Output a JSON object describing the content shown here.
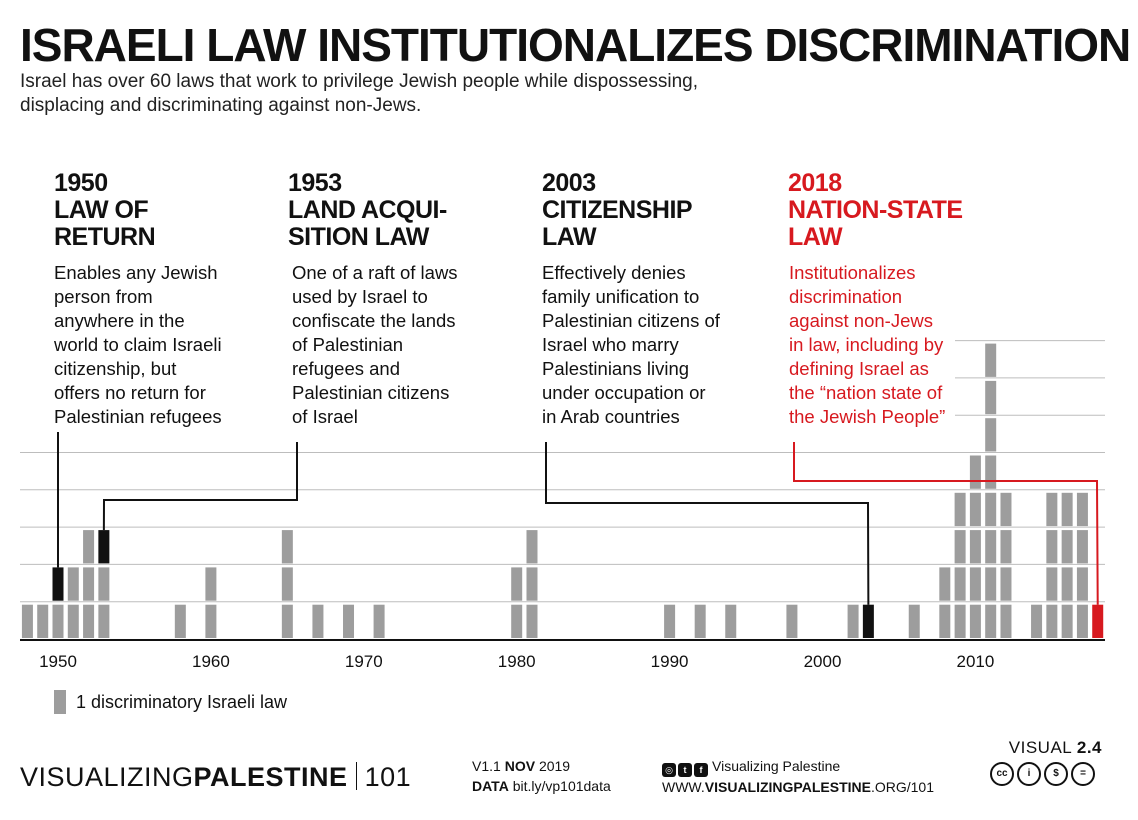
{
  "header": {
    "title": "ISRAELI LAW INSTITUTIONALIZES DISCRIMINATION",
    "subtitle": "Israel has over 60 laws that work to privilege Jewish people while dispossessing, displacing and discriminating against non-Jews."
  },
  "annotations": [
    {
      "year": "1950",
      "name": "LAW OF\nRETURN",
      "desc": "Enables any Jewish\nperson from\nanywhere in the\nworld to claim Israeli\ncitizenship, but\noffers no return for\nPalestinian refugees",
      "target_year": 1950,
      "color": "#111111"
    },
    {
      "year": "1953",
      "name": "LAND ACQUI-\nSITION LAW",
      "desc": "One of a raft of laws\nused by Israel to\nconfiscate the lands\nof Palestinian\nrefugees and\nPalestinian citizens\nof Israel",
      "target_year": 1953,
      "color": "#111111"
    },
    {
      "year": "2003",
      "name": "CITIZENSHIP\nLAW",
      "desc": "Effectively denies\nfamily unification to\nPalestinian citizens of\nIsrael who marry\nPalestinians living\nunder occupation or\nin Arab countries",
      "target_year": 2003,
      "color": "#111111"
    },
    {
      "year": "2018",
      "name": "NATION-STATE\nLAW",
      "desc": "Institutionalizes\ndiscrimination\nagainst non-Jews\nin law, including by\ndefining Israel as\nthe “nation state of\nthe Jewish People”",
      "target_year": 2018,
      "color": "#d7191f"
    }
  ],
  "chart_data": {
    "type": "bar",
    "x_ticks": [
      "1950",
      "1960",
      "1970",
      "1980",
      "1990",
      "2000",
      "2010"
    ],
    "xlim": [
      1948,
      2019
    ],
    "ylim": [
      0,
      8
    ],
    "unit_label": "1 discriminatory Israeli law",
    "years": [
      1948,
      1949,
      1950,
      1951,
      1952,
      1953,
      1958,
      1960,
      1965,
      1967,
      1969,
      1971,
      1980,
      1981,
      1990,
      1992,
      1994,
      1998,
      2002,
      2003,
      2006,
      2008,
      2009,
      2010,
      2011,
      2012,
      2014,
      2015,
      2016,
      2017,
      2018
    ],
    "counts": [
      1,
      1,
      2,
      2,
      3,
      3,
      1,
      2,
      3,
      1,
      1,
      1,
      2,
      3,
      1,
      1,
      1,
      1,
      1,
      1,
      1,
      2,
      4,
      5,
      8,
      4,
      1,
      4,
      4,
      4,
      1
    ],
    "highlighted": [
      {
        "year": 1950,
        "level": 2,
        "color": "#111111"
      },
      {
        "year": 1953,
        "level": 3,
        "color": "#111111"
      },
      {
        "year": 2003,
        "level": 1,
        "color": "#111111"
      },
      {
        "year": 2018,
        "level": 1,
        "color": "#d7191f"
      }
    ],
    "bar_color": "#9d9d9d",
    "grid": true
  },
  "legend": {
    "label": "1 discriminatory Israeli law"
  },
  "footer": {
    "brand_light": "VISUALIZING",
    "brand_bold": "PALESTINE",
    "brand_num": "101",
    "version_prefix": "V1.1",
    "version_month": "NOV",
    "version_year": "2019",
    "data_label": "DATA",
    "data_link": "bit.ly/vp101data",
    "social_name": "Visualizing Palestine",
    "url_prefix": "WWW.",
    "url_bold": "VISUALIZINGPALESTINE",
    "url_suffix": ".ORG/101",
    "visual_label": "VISUAL",
    "visual_num": "2.4"
  }
}
